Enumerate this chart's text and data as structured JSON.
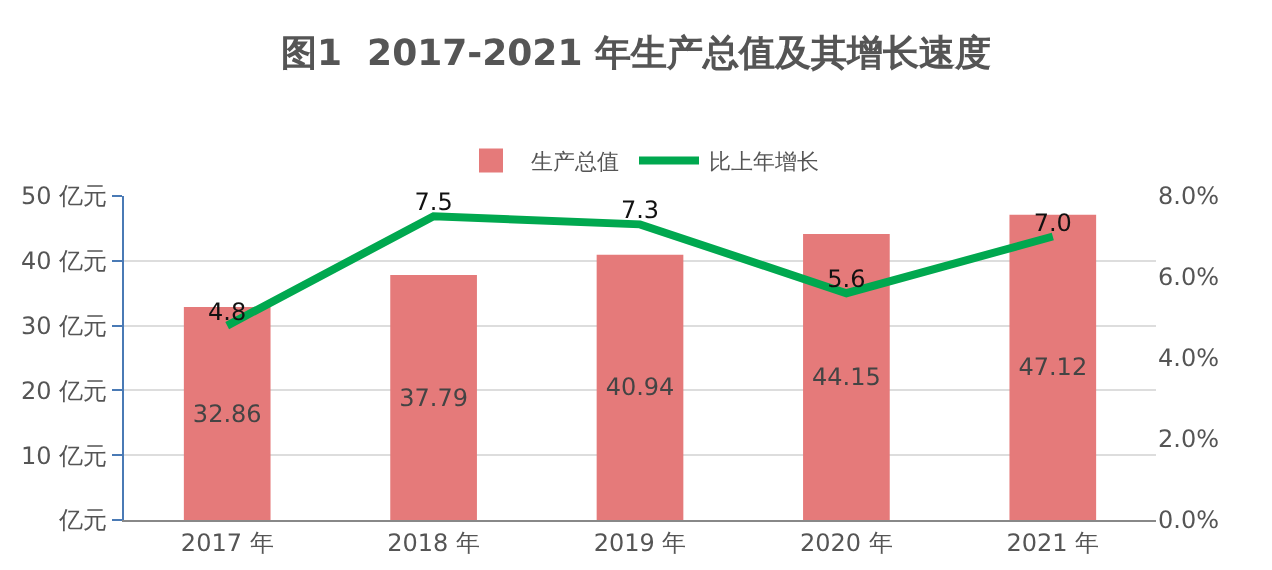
{
  "chart_data": {
    "type": "bar",
    "title": "图1  2017-2021 年生产总值及其增长速度",
    "categories": [
      "2017 年",
      "2018 年",
      "2019 年",
      "2020 年",
      "2021 年"
    ],
    "series": [
      {
        "name": "生产总值",
        "color": "#e57a7a",
        "values": [
          32.86,
          37.79,
          40.94,
          44.15,
          47.12
        ],
        "value_labels": [
          "32.86",
          "37.79",
          "40.94",
          "44.15",
          "47.12"
        ]
      },
      {
        "name": "比上年增长",
        "type": "line",
        "axis": "y2",
        "color": "#00a84f",
        "values": [
          4.8,
          7.5,
          7.3,
          5.6,
          7.0
        ],
        "value_labels": [
          "4.8",
          "7.5",
          "7.3",
          "5.6",
          "7.0"
        ]
      }
    ],
    "ylim": [
      0,
      50
    ],
    "yticks": [
      {
        "value": 0,
        "label": "亿元"
      },
      {
        "value": 10,
        "label": "10 亿元"
      },
      {
        "value": 20,
        "label": "20 亿元"
      },
      {
        "value": 30,
        "label": "30 亿元"
      },
      {
        "value": 40,
        "label": "40 亿元"
      },
      {
        "value": 50,
        "label": "50 亿元"
      }
    ],
    "y2lim": [
      0,
      8
    ],
    "y2ticks": [
      {
        "value": 0,
        "label": "0.0%"
      },
      {
        "value": 2,
        "label": "2.0%"
      },
      {
        "value": 4,
        "label": "4.0%"
      },
      {
        "value": 6,
        "label": "6.0%"
      },
      {
        "value": 8,
        "label": "8.0%"
      }
    ],
    "grid": "y",
    "legend": "top",
    "marker": "none",
    "line_style": "solid"
  }
}
